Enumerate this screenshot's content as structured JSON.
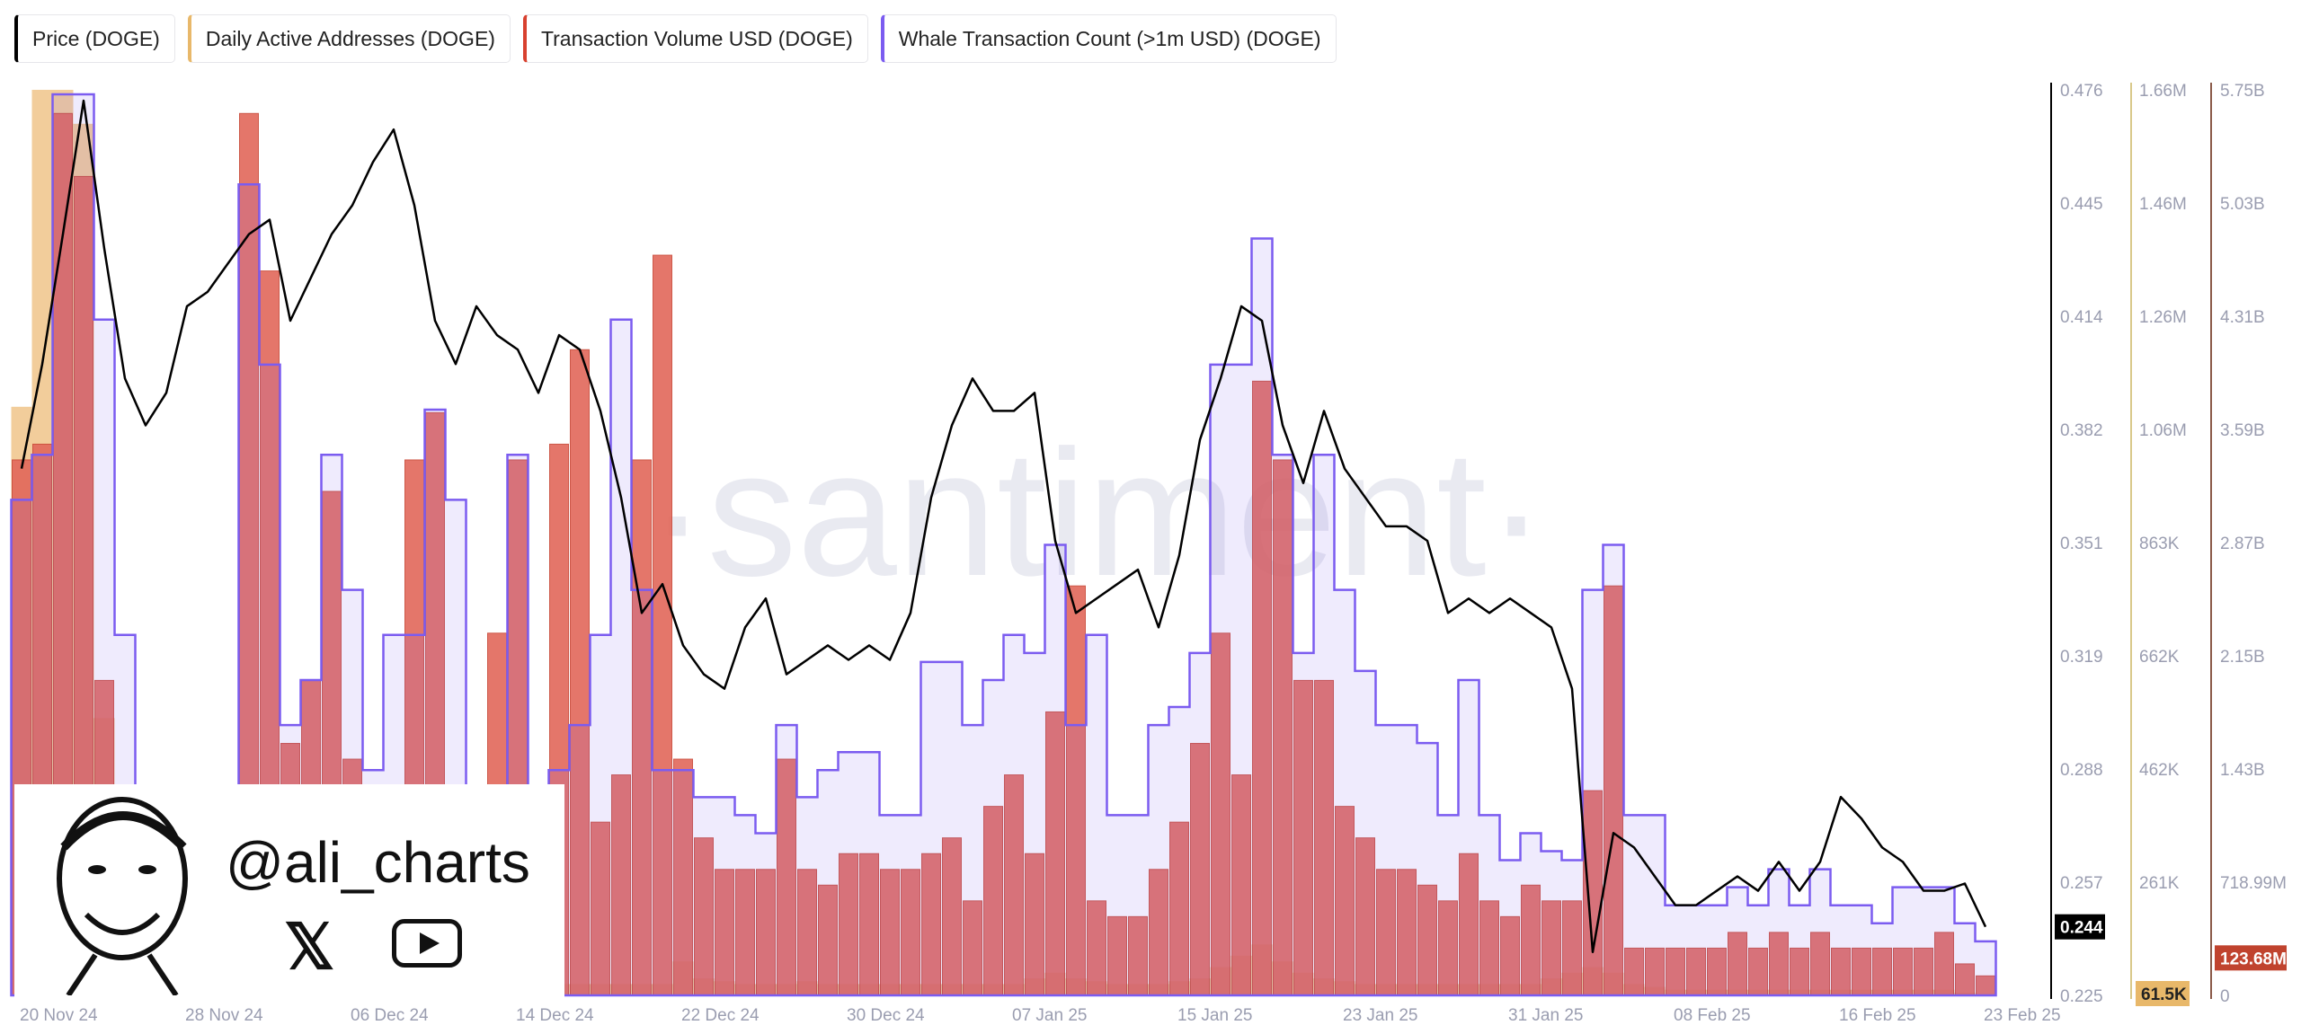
{
  "legend": [
    {
      "label": "Price (DOGE)",
      "color": "#000000"
    },
    {
      "label": "Daily Active Addresses (DOGE)",
      "color": "#e8b86a"
    },
    {
      "label": "Transaction Volume USD (DOGE)",
      "color": "#d8412f"
    },
    {
      "label": "Whale Transaction Count (>1m USD) (DOGE)",
      "color": "#7b5cf0"
    }
  ],
  "watermark": "·santiment·",
  "overlay": {
    "handle": "@ali_charts",
    "icons": [
      "x-logo-icon",
      "youtube-icon"
    ]
  },
  "chart_data": {
    "type": "line+bar",
    "x_tick_labels": [
      "20 Nov 24",
      "28 Nov 24",
      "06 Dec 24",
      "14 Dec 24",
      "22 Dec 24",
      "30 Dec 24",
      "07 Jan 25",
      "15 Jan 25",
      "23 Jan 25",
      "31 Jan 25",
      "08 Feb 25",
      "16 Feb 25",
      "23 Feb 25"
    ],
    "x_range": [
      "20 Nov 24",
      "23 Feb 25"
    ],
    "axes": {
      "price": {
        "ticks": [
          "0.476",
          "0.445",
          "0.414",
          "0.382",
          "0.351",
          "0.319",
          "0.288",
          "0.257",
          "0.225"
        ],
        "range": [
          0.225,
          0.476
        ],
        "current": "0.244"
      },
      "active_addresses": {
        "ticks": [
          "1.66M",
          "1.46M",
          "1.26M",
          "1.06M",
          "863K",
          "662K",
          "462K",
          "261K"
        ],
        "range": [
          60000,
          1660000
        ],
        "current": "61.5K"
      },
      "volume": {
        "ticks": [
          "5.75B",
          "5.03B",
          "4.31B",
          "3.59B",
          "2.87B",
          "2.15B",
          "1.43B",
          "718.99M",
          "0"
        ],
        "range": [
          0,
          5750000000
        ],
        "current": "123.68M"
      }
    },
    "series": [
      {
        "name": "Price (DOGE)",
        "type": "line",
        "values": [
          0.371,
          0.4,
          0.436,
          0.473,
          0.432,
          0.396,
          0.383,
          0.392,
          0.416,
          0.42,
          0.428,
          0.436,
          0.44,
          0.412,
          0.424,
          0.436,
          0.444,
          0.456,
          0.465,
          0.444,
          0.412,
          0.4,
          0.416,
          0.408,
          0.404,
          0.392,
          0.408,
          0.404,
          0.387,
          0.363,
          0.331,
          0.339,
          0.322,
          0.314,
          0.31,
          0.327,
          0.335,
          0.314,
          0.318,
          0.322,
          0.318,
          0.322,
          0.318,
          0.331,
          0.363,
          0.383,
          0.396,
          0.387,
          0.387,
          0.392,
          0.351,
          0.331,
          0.335,
          0.339,
          0.343,
          0.327,
          0.347,
          0.379,
          0.396,
          0.416,
          0.412,
          0.383,
          0.367,
          0.387,
          0.371,
          0.363,
          0.355,
          0.355,
          0.351,
          0.331,
          0.335,
          0.331,
          0.335,
          0.331,
          0.327,
          0.31,
          0.237,
          0.27,
          0.266,
          0.258,
          0.25,
          0.25,
          0.254,
          0.258,
          0.254,
          0.262,
          0.254,
          0.262,
          0.28,
          0.274,
          0.266,
          0.262,
          0.254,
          0.254,
          0.256,
          0.244
        ]
      },
      {
        "name": "Daily Active Addresses (DOGE)",
        "type": "bar",
        "values": [
          1100000,
          1660000,
          1660000,
          1600000,
          550000,
          200000,
          90000,
          85000,
          80000,
          80000,
          80000,
          90000,
          85000,
          80000,
          80000,
          80000,
          80000,
          80000,
          80000,
          85000,
          80000,
          80000,
          80000,
          80000,
          80000,
          80000,
          80000,
          80000,
          80000,
          80000,
          80000,
          80000,
          120000,
          90000,
          85000,
          80000,
          80000,
          80000,
          85000,
          80000,
          80000,
          80000,
          80000,
          80000,
          80000,
          80000,
          80000,
          80000,
          80000,
          90000,
          100000,
          90000,
          85000,
          80000,
          80000,
          80000,
          85000,
          90000,
          110000,
          130000,
          150000,
          120000,
          100000,
          90000,
          85000,
          80000,
          80000,
          80000,
          80000,
          80000,
          80000,
          80000,
          80000,
          80000,
          90000,
          100000,
          110000,
          100000,
          80000,
          75000,
          70000,
          70000,
          70000,
          70000,
          70000,
          70000,
          70000,
          70000,
          70000,
          70000,
          70000,
          70000,
          70000,
          70000,
          65000,
          61500
        ]
      },
      {
        "name": "Transaction Volume USD (DOGE)",
        "type": "bar",
        "values": [
          3400000000.0,
          3500000000.0,
          5600000000.0,
          5200000000.0,
          2000000000.0,
          1000000000.0,
          400000000.0,
          400000000.0,
          400000000.0,
          400000000.0,
          500000000.0,
          5600000000.0,
          4600000000.0,
          1600000000.0,
          2000000000.0,
          3200000000.0,
          1500000000.0,
          500000000.0,
          600000000.0,
          3400000000.0,
          3700000000.0,
          1100000000.0,
          1000000000.0,
          2300000000.0,
          3400000000.0,
          300000000.0,
          3500000000.0,
          4100000000.0,
          1100000000.0,
          1400000000.0,
          3400000000.0,
          4700000000.0,
          1500000000.0,
          1000000000.0,
          800000000.0,
          800000000.0,
          800000000.0,
          1500000000.0,
          800000000.0,
          700000000.0,
          900000000.0,
          900000000.0,
          800000000.0,
          800000000.0,
          900000000.0,
          1000000000.0,
          600000000.0,
          1200000000.0,
          1400000000.0,
          900000000.0,
          1800000000.0,
          2600000000.0,
          600000000.0,
          500000000.0,
          500000000.0,
          800000000.0,
          1100000000.0,
          1600000000.0,
          2300000000.0,
          1400000000.0,
          3900000000.0,
          3400000000.0,
          2000000000.0,
          2000000000.0,
          1200000000.0,
          1000000000.0,
          800000000.0,
          800000000.0,
          700000000.0,
          600000000.0,
          900000000.0,
          600000000.0,
          500000000.0,
          700000000.0,
          600000000.0,
          600000000.0,
          1300000000.0,
          2600000000.0,
          300000000.0,
          300000000.0,
          300000000.0,
          300000000.0,
          300000000.0,
          400000000.0,
          300000000.0,
          400000000.0,
          300000000.0,
          400000000.0,
          300000000.0,
          300000000.0,
          300000000.0,
          300000000.0,
          300000000.0,
          400000000.0,
          200000000.0,
          123680000.0
        ]
      },
      {
        "name": "Whale Transaction Count (>1m USD) (DOGE)",
        "type": "step",
        "values": [
          55,
          60,
          100,
          100,
          75,
          40,
          20,
          20,
          8,
          8,
          8,
          90,
          70,
          30,
          35,
          60,
          45,
          25,
          40,
          40,
          65,
          55,
          10,
          10,
          60,
          15,
          25,
          30,
          40,
          75,
          45,
          25,
          25,
          22,
          22,
          20,
          18,
          30,
          22,
          25,
          27,
          27,
          20,
          20,
          37,
          37,
          30,
          35,
          40,
          38,
          50,
          30,
          40,
          20,
          20,
          30,
          32,
          38,
          70,
          70,
          84,
          60,
          38,
          60,
          45,
          36,
          30,
          30,
          28,
          20,
          35,
          20,
          15,
          18,
          16,
          15,
          45,
          50,
          20,
          20,
          10,
          10,
          10,
          12,
          10,
          14,
          10,
          14,
          10,
          10,
          8,
          12,
          12,
          12,
          8,
          6
        ]
      }
    ]
  }
}
